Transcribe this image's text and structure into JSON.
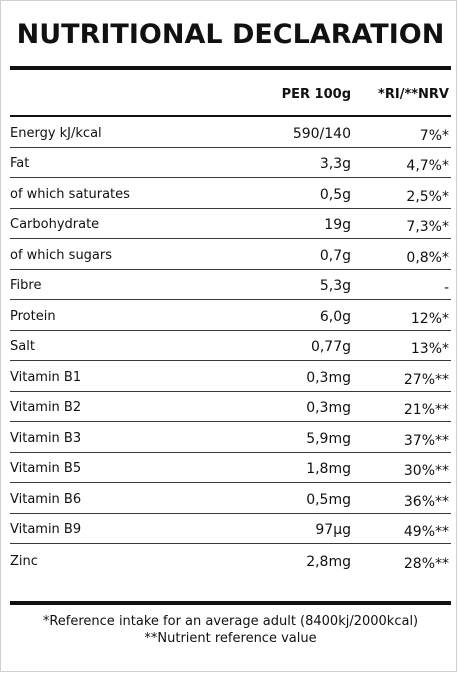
{
  "title": "NUTRITIONAL DECLARATION",
  "header": {
    "per100": "PER 100g",
    "ri": "*RI/**NRV"
  },
  "rows": [
    {
      "name": "Energy kJ/kcal",
      "per100": "590/140",
      "ri": "7%*"
    },
    {
      "name": "Fat",
      "per100": "3,3g",
      "ri": "4,7%*"
    },
    {
      "name": "of which saturates",
      "per100": "0,5g",
      "ri": "2,5%*"
    },
    {
      "name": "Carbohydrate",
      "per100": "19g",
      "ri": "7,3%*"
    },
    {
      "name": "of which sugars",
      "per100": "0,7g",
      "ri": "0,8%*"
    },
    {
      "name": "Fibre",
      "per100": "5,3g",
      "ri": "-"
    },
    {
      "name": "Protein",
      "per100": "6,0g",
      "ri": "12%*"
    },
    {
      "name": "Salt",
      "per100": "0,77g",
      "ri": "13%*"
    },
    {
      "name": "Vitamin B1",
      "per100": "0,3mg",
      "ri": "27%**"
    },
    {
      "name": "Vitamin B2",
      "per100": "0,3mg",
      "ri": "21%**"
    },
    {
      "name": "Vitamin B3",
      "per100": "5,9mg",
      "ri": "37%**"
    },
    {
      "name": "Vitamin B5",
      "per100": "1,8mg",
      "ri": "30%**"
    },
    {
      "name": "Vitamin B6",
      "per100": "0,5mg",
      "ri": "36%**"
    },
    {
      "name": "Vitamin B9",
      "per100": "97µg",
      "ri": "49%**"
    },
    {
      "name": "Zinc",
      "per100": "2,8mg",
      "ri": "28%**"
    }
  ],
  "footnotes": {
    "ri": "*Reference intake for an average adult (8400kj/2000kcal)",
    "nrv": "**Nutrient reference value"
  }
}
